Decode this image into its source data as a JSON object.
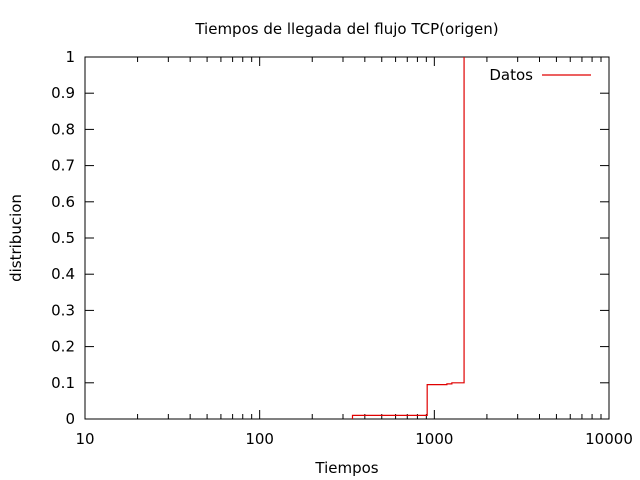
{
  "chart_data": {
    "type": "line",
    "title": "Tiempos de llegada del flujo TCP(origen)",
    "xlabel": "Tiempos",
    "ylabel": "distribucion",
    "xscale": "log",
    "xlim": [
      10,
      10000
    ],
    "ylim": [
      0,
      1
    ],
    "xticks": [
      10,
      100,
      1000,
      10000
    ],
    "xtick_labels": [
      "10",
      "100",
      "1000",
      "10000"
    ],
    "yticks": [
      0,
      0.1,
      0.2,
      0.3,
      0.4,
      0.5,
      0.6,
      0.7,
      0.8,
      0.9,
      1
    ],
    "ytick_labels": [
      "0",
      "0.1",
      "0.2",
      "0.3",
      "0.4",
      "0.5",
      "0.6",
      "0.7",
      "0.8",
      "0.9",
      "1"
    ],
    "grid": false,
    "legend_position": "top-right",
    "series": [
      {
        "name": "Datos",
        "color": "#e00000",
        "step": true,
        "points": [
          [
            340,
            0.0
          ],
          [
            340,
            0.01
          ],
          [
            910,
            0.01
          ],
          [
            910,
            0.095
          ],
          [
            1180,
            0.095
          ],
          [
            1180,
            0.097
          ],
          [
            1260,
            0.097
          ],
          [
            1260,
            0.1
          ],
          [
            1480,
            0.1
          ],
          [
            1480,
            1.0
          ]
        ]
      }
    ]
  }
}
